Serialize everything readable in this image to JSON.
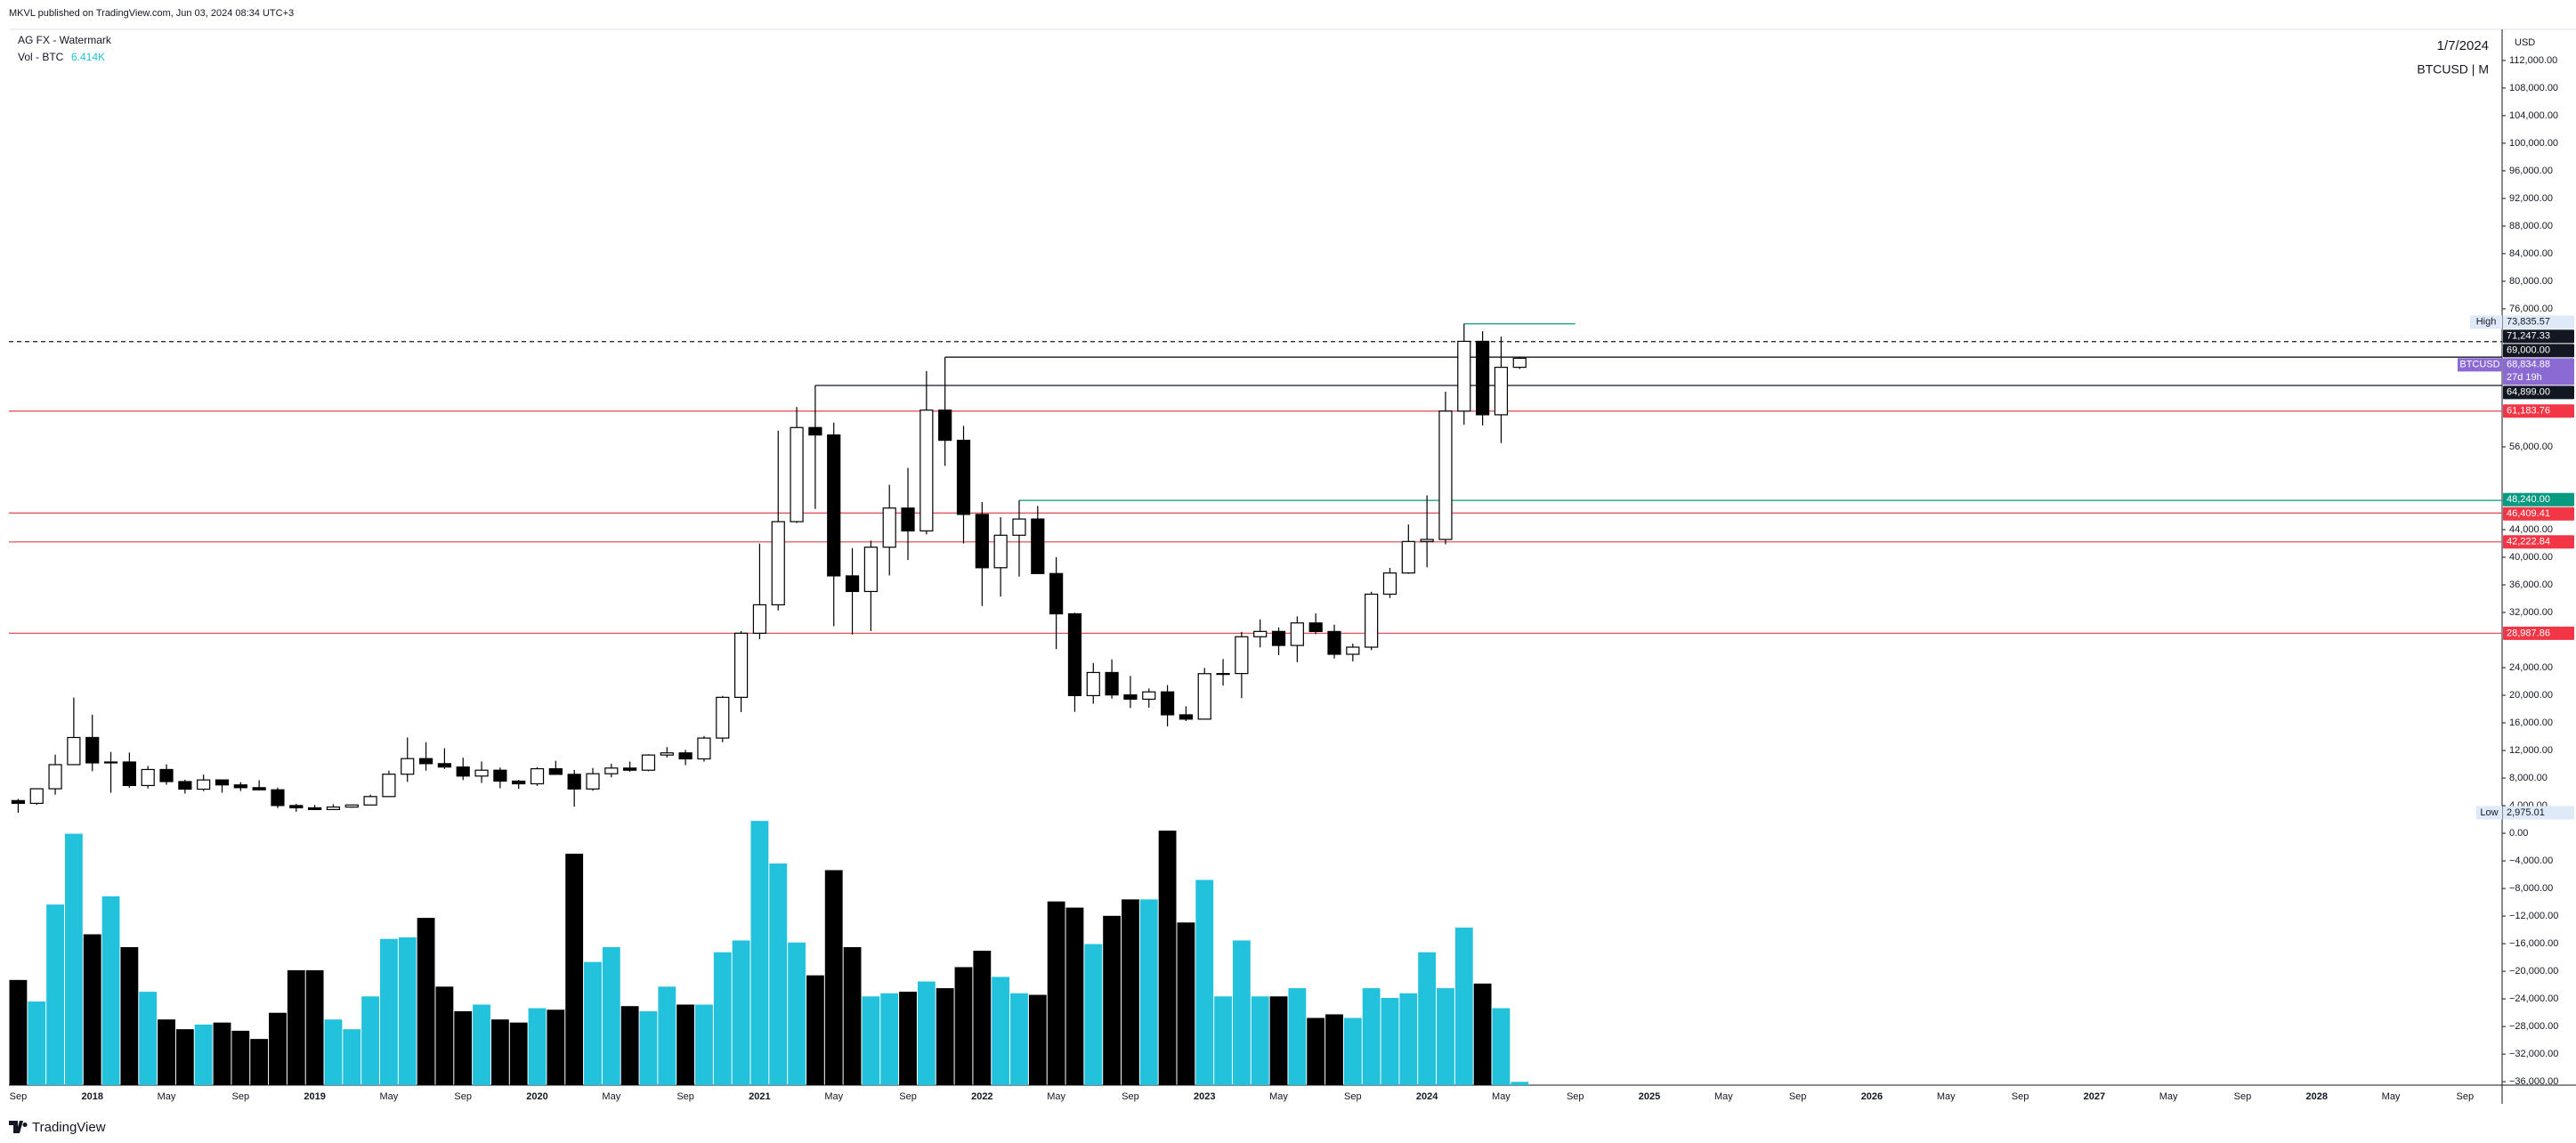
{
  "published": "MKVL published on TradingView.com, Jun 03, 2024 08:34 UTC+3",
  "brand": "TradingView",
  "chart_data": {
    "type": "candlestick",
    "title": "AG FX - Watermark",
    "date": "1/7/2024",
    "symbol": "BTCUSD | M",
    "currency": "USD",
    "up_color": "#ffffff",
    "down_color": "#000000",
    "wick_color": "#000000",
    "xlim": [
      -0.5,
      134
    ],
    "ylim": [
      -36500,
      116500
    ],
    "xticks": [
      {
        "value": 0,
        "label": "Sep"
      },
      {
        "value": 4,
        "label": "2018"
      },
      {
        "value": 8,
        "label": "May"
      },
      {
        "value": 12,
        "label": "Sep"
      },
      {
        "value": 16,
        "label": "2019"
      },
      {
        "value": 20,
        "label": "May"
      },
      {
        "value": 24,
        "label": "Sep"
      },
      {
        "value": 28,
        "label": "2020"
      },
      {
        "value": 32,
        "label": "May"
      },
      {
        "value": 36,
        "label": "Sep"
      },
      {
        "value": 40,
        "label": "2021"
      },
      {
        "value": 44,
        "label": "May"
      },
      {
        "value": 48,
        "label": "Sep"
      },
      {
        "value": 52,
        "label": "2022"
      },
      {
        "value": 56,
        "label": "May"
      },
      {
        "value": 60,
        "label": "Sep"
      },
      {
        "value": 64,
        "label": "2023"
      },
      {
        "value": 68,
        "label": "May"
      },
      {
        "value": 72,
        "label": "Sep"
      },
      {
        "value": 76,
        "label": "2024"
      },
      {
        "value": 80,
        "label": "May"
      },
      {
        "value": 84,
        "label": "Sep"
      },
      {
        "value": 88,
        "label": "2025"
      },
      {
        "value": 92,
        "label": "May"
      },
      {
        "value": 96,
        "label": "Sep"
      },
      {
        "value": 100,
        "label": "2026"
      },
      {
        "value": 104,
        "label": "May"
      },
      {
        "value": 108,
        "label": "Sep"
      },
      {
        "value": 112,
        "label": "2027"
      },
      {
        "value": 116,
        "label": "May"
      },
      {
        "value": 120,
        "label": "Sep"
      },
      {
        "value": 124,
        "label": "2028"
      },
      {
        "value": 128,
        "label": "May"
      },
      {
        "value": 132,
        "label": "Sep"
      }
    ],
    "yticks": [
      {
        "value": 112000,
        "label": "112,000.00"
      },
      {
        "value": 108000,
        "label": "108,000.00"
      },
      {
        "value": 104000,
        "label": "104,000.00"
      },
      {
        "value": 100000,
        "label": "100,000.00"
      },
      {
        "value": 96000,
        "label": "96,000.00"
      },
      {
        "value": 92000,
        "label": "92,000.00"
      },
      {
        "value": 88000,
        "label": "88,000.00"
      },
      {
        "value": 84000,
        "label": "84,000.00"
      },
      {
        "value": 80000,
        "label": "80,000.00"
      },
      {
        "value": 76000,
        "label": "76,000.00"
      },
      {
        "value": 56000,
        "label": "56,000.00"
      },
      {
        "value": 44000,
        "label": "44,000.00"
      },
      {
        "value": 40000,
        "label": "40,000.00"
      },
      {
        "value": 36000,
        "label": "36,000.00"
      },
      {
        "value": 32000,
        "label": "32,000.00"
      },
      {
        "value": 24000,
        "label": "24,000.00"
      },
      {
        "value": 20000,
        "label": "20,000.00"
      },
      {
        "value": 16000,
        "label": "16,000.00"
      },
      {
        "value": 12000,
        "label": "12,000.00"
      },
      {
        "value": 8000,
        "label": "8,000.00"
      },
      {
        "value": 4000,
        "label": "4,000.00"
      },
      {
        "value": 0,
        "label": "0.00"
      },
      {
        "value": -4000,
        "label": "−4,000.00"
      },
      {
        "value": -8000,
        "label": "−8,000.00"
      },
      {
        "value": -12000,
        "label": "−12,000.00"
      },
      {
        "value": -16000,
        "label": "−16,000.00"
      },
      {
        "value": -20000,
        "label": "−20,000.00"
      },
      {
        "value": -24000,
        "label": "−24,000.00"
      },
      {
        "value": -28000,
        "label": "−28,000.00"
      },
      {
        "value": -32000,
        "label": "−32,000.00"
      },
      {
        "value": -36000,
        "label": "−36,000.00"
      }
    ],
    "ohlc": {
      "open": [
        4735,
        4338,
        6450,
        9946,
        13880,
        10200,
        10330,
        6920,
        9240,
        7490,
        6390,
        7730,
        7010,
        6610,
        6300,
        4020,
        3690,
        3440,
        3800,
        4100,
        5320,
        8560,
        10820,
        10090,
        9600,
        8290,
        9140,
        7560,
        7170,
        9350,
        8540,
        6420,
        8630,
        9450,
        9140,
        11340,
        11650,
        10780,
        13800,
        19700,
        28990,
        33110,
        45160,
        58800,
        57720,
        37300,
        35040,
        41460,
        47130,
        43820,
        61320,
        56950,
        46210,
        38480,
        43190,
        45540,
        37640,
        31800,
        19950,
        23300,
        20050,
        19430,
        20490,
        17170,
        16540,
        23130,
        23150,
        28480,
        29250,
        27220,
        30480,
        29240,
        25940,
        26970,
        34650,
        37720,
        42280,
        42580,
        61180,
        71290,
        60650,
        67530
      ],
      "high": [
        4980,
        6470,
        11400,
        19666,
        17180,
        11790,
        11700,
        9750,
        9990,
        7760,
        8500,
        7760,
        7400,
        7680,
        6620,
        4260,
        4110,
        4200,
        4140,
        5600,
        9080,
        13880,
        13200,
        12330,
        10950,
        10400,
        9520,
        7750,
        9580,
        10500,
        9180,
        9460,
        10080,
        10390,
        11450,
        12480,
        12090,
        14100,
        19900,
        29300,
        41980,
        58350,
        61780,
        64899,
        59520,
        41330,
        42400,
        50500,
        52950,
        67000,
        69000,
        59050,
        47990,
        45800,
        48240,
        47440,
        40020,
        31960,
        24680,
        25200,
        22800,
        20990,
        21470,
        18400,
        23960,
        25250,
        29190,
        31000,
        29830,
        31440,
        31860,
        30230,
        27490,
        35000,
        38450,
        44750,
        48970,
        64000,
        73835.57,
        72750,
        71980,
        69100
      ],
      "low": [
        2975.01,
        4110,
        5600,
        9900,
        9000,
        5880,
        6600,
        6500,
        7030,
        5750,
        6110,
        5880,
        6120,
        6200,
        3660,
        3120,
        3400,
        3380,
        3700,
        4050,
        5320,
        7440,
        9070,
        9320,
        7710,
        7300,
        6520,
        6430,
        6860,
        8460,
        3850,
        6160,
        8110,
        8930,
        8990,
        10990,
        9870,
        10380,
        13200,
        17560,
        28130,
        32300,
        44970,
        47000,
        30000,
        28800,
        29300,
        37360,
        39600,
        43300,
        53250,
        42000,
        32950,
        34300,
        37200,
        37700,
        26700,
        17600,
        18780,
        19520,
        18150,
        18200,
        15480,
        16260,
        16500,
        21400,
        19570,
        26940,
        25810,
        24800,
        28860,
        25330,
        24910,
        26540,
        34100,
        37600,
        38550,
        41880,
        59200,
        59100,
        56550,
        67280
      ],
      "close": [
        4338,
        6450,
        9946,
        13880,
        10200,
        10330,
        6920,
        9240,
        7490,
        6390,
        7730,
        7010,
        6610,
        6300,
        4020,
        3690,
        3440,
        3800,
        4100,
        5320,
        8560,
        10820,
        10090,
        9600,
        8290,
        9140,
        7560,
        7170,
        9350,
        8540,
        6420,
        8630,
        9450,
        9140,
        11340,
        11650,
        10780,
        13800,
        19700,
        28990,
        33110,
        45160,
        58800,
        57720,
        37300,
        35040,
        41460,
        47130,
        43820,
        61320,
        56950,
        46210,
        38480,
        43190,
        45540,
        37640,
        31800,
        19950,
        23300,
        20050,
        19430,
        20490,
        17170,
        16540,
        23130,
        23150,
        28480,
        29250,
        27220,
        30480,
        29240,
        25940,
        26970,
        34650,
        37720,
        42280,
        42580,
        61180,
        71290,
        60650,
        67530,
        68834.88
      ]
    },
    "volume": {
      "name": "Vol - BTC",
      "last_label": "6.414K",
      "up_color": "#22c1dc",
      "down_color": "#000000",
      "volume_lim": [
        0,
        550
      ],
      "values": [
        205,
        163,
        352,
        490,
        294,
        368,
        269,
        182,
        128,
        109,
        118,
        122,
        106,
        90,
        141,
        224,
        224,
        128,
        109,
        173,
        285,
        288,
        326,
        192,
        144,
        157,
        128,
        122,
        150,
        147,
        451,
        240,
        269,
        154,
        144,
        192,
        157,
        157,
        259,
        282,
        515,
        432,
        278,
        214,
        419,
        269,
        173,
        179,
        182,
        202,
        189,
        230,
        262,
        211,
        179,
        176,
        358,
        346,
        275,
        330,
        362,
        362,
        496,
        317,
        400,
        173,
        282,
        173,
        173,
        189,
        131,
        138,
        131,
        189,
        170,
        179,
        259,
        189,
        307,
        198,
        150,
        6.414
      ]
    },
    "axis_tags": [
      {
        "tag": "High",
        "value": 73835.57,
        "label": "73,835.57",
        "color": "#dfeaf8",
        "text_color": "#131722",
        "line": "solid",
        "line_color": "#089981",
        "from": 78,
        "to": 84
      },
      {
        "value": 71247.33,
        "label": "71,247.33",
        "color": "#131722",
        "text_color": "#ffffff",
        "line": "dashed",
        "line_color": "#131722"
      },
      {
        "value": 69000,
        "label": "69,000.00",
        "color": "#131722",
        "text_color": "#ffffff",
        "line": "solid",
        "line_color": "#131722",
        "from": 50
      },
      {
        "tag": "BTCUSD",
        "value": 68834.88,
        "label": "68,834.88",
        "sub": "27d 19h",
        "color": "#8c6ad4",
        "text_color": "#ffffff"
      },
      {
        "value": 64899,
        "label": "64,899.00",
        "color": "#131722",
        "text_color": "#ffffff",
        "line": "solid",
        "line_color": "#131722",
        "from": 43
      },
      {
        "value": 61183.76,
        "label": "61,183.76",
        "color": "#f23645",
        "text_color": "#ffffff",
        "line": "solid",
        "line_color": "#e05561"
      },
      {
        "value": 48240,
        "label": "48,240.00",
        "color": "#089981",
        "text_color": "#ffffff",
        "line": "solid",
        "line_color": "#089981",
        "from": 54
      },
      {
        "value": 46409.41,
        "label": "46,409.41",
        "color": "#f23645",
        "text_color": "#ffffff",
        "line": "solid",
        "line_color": "#e05561"
      },
      {
        "value": 42222.84,
        "label": "42,222.84",
        "color": "#f23645",
        "text_color": "#ffffff",
        "line": "solid",
        "line_color": "#e05561"
      },
      {
        "value": 28987.86,
        "label": "28,987.86",
        "color": "#f23645",
        "text_color": "#ffffff",
        "line": "solid",
        "line_color": "#e05561"
      },
      {
        "tag": "Low",
        "value": 2975.01,
        "label": "2,975.01",
        "color": "#dfeaf8",
        "text_color": "#131722"
      }
    ]
  }
}
